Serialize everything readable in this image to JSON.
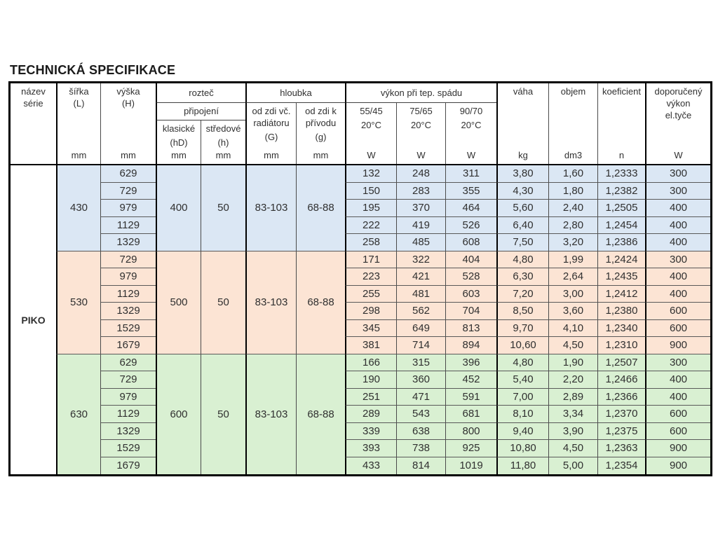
{
  "title": "TECHNICKÁ SPECIFIKACE",
  "colors": {
    "section_blue": "#dbe7f4",
    "section_pink": "#fce4d4",
    "section_green": "#d9f0d2",
    "thick_border": "#000000",
    "thin_border": "#595959",
    "text": "#303030"
  },
  "header": {
    "nazev": "název\nsérie",
    "sirka": {
      "label": "šířka\n(L)",
      "unit": "mm"
    },
    "vyska": {
      "label": "výška\n(H)",
      "unit": "mm"
    },
    "roztec": {
      "title": "rozteč",
      "subtitle": "připojení",
      "cols": [
        {
          "label": "klasické",
          "sub": "(hD)",
          "unit": "mm"
        },
        {
          "label": "středové",
          "sub": "(h)",
          "unit": "mm"
        }
      ]
    },
    "hloubka": {
      "title": "hloubka",
      "cols": [
        {
          "label": "od zdi vč.\nradiátoru",
          "sub": "(G)",
          "unit": "mm"
        },
        {
          "label": "od zdi k\npřívodu",
          "sub": "(g)",
          "unit": "mm"
        }
      ]
    },
    "vykon": {
      "title": "výkon při tep. spádu",
      "cols": [
        {
          "label": "55/45",
          "sub": "20°C",
          "unit": "W"
        },
        {
          "label": "75/65",
          "sub": "20°C",
          "unit": "W"
        },
        {
          "label": "90/70",
          "sub": "20°C",
          "unit": "W"
        }
      ]
    },
    "vaha": {
      "label": "váha",
      "unit": "kg"
    },
    "objem": {
      "label": "objem",
      "unit": "dm3"
    },
    "koeficient": {
      "label": "koeficient",
      "unit": "n"
    },
    "doporuceny": {
      "label": "doporučený\nvýkon\nel.tyče",
      "unit": "W"
    }
  },
  "series": {
    "name": "PIKO"
  },
  "sections": [
    {
      "bg": "#dbe7f4",
      "sirka": "430",
      "klasicke": "400",
      "stredove": "50",
      "hloubka_G": "83-103",
      "hloubka_g": "68-88",
      "rows": [
        {
          "vyska": "629",
          "p5545": "132",
          "p7565": "248",
          "p9070": "311",
          "vaha": "3,80",
          "objem": "1,60",
          "koef": "1,2333",
          "el": "300"
        },
        {
          "vyska": "729",
          "p5545": "150",
          "p7565": "283",
          "p9070": "355",
          "vaha": "4,30",
          "objem": "1,80",
          "koef": "1,2382",
          "el": "300"
        },
        {
          "vyska": "979",
          "p5545": "195",
          "p7565": "370",
          "p9070": "464",
          "vaha": "5,60",
          "objem": "2,40",
          "koef": "1,2505",
          "el": "400"
        },
        {
          "vyska": "1129",
          "p5545": "222",
          "p7565": "419",
          "p9070": "526",
          "vaha": "6,40",
          "objem": "2,80",
          "koef": "1,2454",
          "el": "400"
        },
        {
          "vyska": "1329",
          "p5545": "258",
          "p7565": "485",
          "p9070": "608",
          "vaha": "7,50",
          "objem": "3,20",
          "koef": "1,2386",
          "el": "400"
        }
      ]
    },
    {
      "bg": "#fce4d4",
      "sirka": "530",
      "klasicke": "500",
      "stredove": "50",
      "hloubka_G": "83-103",
      "hloubka_g": "68-88",
      "rows": [
        {
          "vyska": "729",
          "p5545": "171",
          "p7565": "322",
          "p9070": "404",
          "vaha": "4,80",
          "objem": "1,99",
          "koef": "1,2424",
          "el": "300"
        },
        {
          "vyska": "979",
          "p5545": "223",
          "p7565": "421",
          "p9070": "528",
          "vaha": "6,30",
          "objem": "2,64",
          "koef": "1,2435",
          "el": "400"
        },
        {
          "vyska": "1129",
          "p5545": "255",
          "p7565": "481",
          "p9070": "603",
          "vaha": "7,20",
          "objem": "3,00",
          "koef": "1,2412",
          "el": "400"
        },
        {
          "vyska": "1329",
          "p5545": "298",
          "p7565": "562",
          "p9070": "704",
          "vaha": "8,50",
          "objem": "3,60",
          "koef": "1,2380",
          "el": "600"
        },
        {
          "vyska": "1529",
          "p5545": "345",
          "p7565": "649",
          "p9070": "813",
          "vaha": "9,70",
          "objem": "4,10",
          "koef": "1,2340",
          "el": "600"
        },
        {
          "vyska": "1679",
          "p5545": "381",
          "p7565": "714",
          "p9070": "894",
          "vaha": "10,60",
          "objem": "4,50",
          "koef": "1,2310",
          "el": "900"
        }
      ]
    },
    {
      "bg": "#d9f0d2",
      "sirka": "630",
      "klasicke": "600",
      "stredove": "50",
      "hloubka_G": "83-103",
      "hloubka_g": "68-88",
      "rows": [
        {
          "vyska": "629",
          "p5545": "166",
          "p7565": "315",
          "p9070": "396",
          "vaha": "4,80",
          "objem": "1,90",
          "koef": "1,2507",
          "el": "300"
        },
        {
          "vyska": "729",
          "p5545": "190",
          "p7565": "360",
          "p9070": "452",
          "vaha": "5,40",
          "objem": "2,20",
          "koef": "1,2466",
          "el": "400"
        },
        {
          "vyska": "979",
          "p5545": "251",
          "p7565": "471",
          "p9070": "591",
          "vaha": "7,00",
          "objem": "2,89",
          "koef": "1,2366",
          "el": "400"
        },
        {
          "vyska": "1129",
          "p5545": "289",
          "p7565": "543",
          "p9070": "681",
          "vaha": "8,10",
          "objem": "3,34",
          "koef": "1,2370",
          "el": "600"
        },
        {
          "vyska": "1329",
          "p5545": "339",
          "p7565": "638",
          "p9070": "800",
          "vaha": "9,40",
          "objem": "3,90",
          "koef": "1,2375",
          "el": "600"
        },
        {
          "vyska": "1529",
          "p5545": "393",
          "p7565": "738",
          "p9070": "925",
          "vaha": "10,80",
          "objem": "4,50",
          "koef": "1,2363",
          "el": "900"
        },
        {
          "vyska": "1679",
          "p5545": "433",
          "p7565": "814",
          "p9070": "1019",
          "vaha": "11,80",
          "objem": "5,00",
          "koef": "1,2354",
          "el": "900"
        }
      ]
    }
  ]
}
